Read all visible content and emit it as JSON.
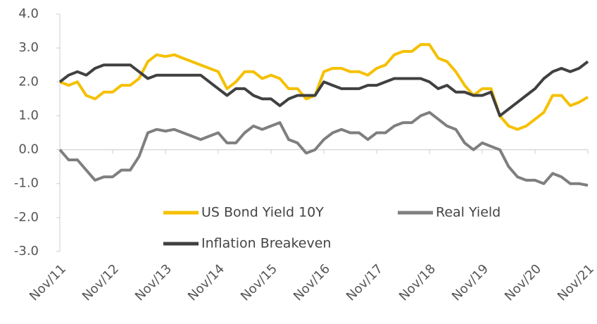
{
  "chart_data": {
    "type": "line",
    "x": [
      "2011-11",
      "2012-01",
      "2012-03",
      "2012-05",
      "2012-07",
      "2012-09",
      "2012-11",
      "2013-01",
      "2013-03",
      "2013-05",
      "2013-07",
      "2013-09",
      "2013-11",
      "2014-01",
      "2014-03",
      "2014-05",
      "2014-07",
      "2014-09",
      "2014-11",
      "2015-01",
      "2015-03",
      "2015-05",
      "2015-07",
      "2015-09",
      "2015-11",
      "2016-01",
      "2016-03",
      "2016-05",
      "2016-07",
      "2016-09",
      "2016-11",
      "2017-01",
      "2017-03",
      "2017-05",
      "2017-07",
      "2017-09",
      "2017-11",
      "2018-01",
      "2018-03",
      "2018-05",
      "2018-07",
      "2018-09",
      "2018-11",
      "2019-01",
      "2019-03",
      "2019-05",
      "2019-07",
      "2019-09",
      "2019-11",
      "2020-01",
      "2020-03",
      "2020-05",
      "2020-07",
      "2020-09",
      "2020-11",
      "2021-01",
      "2021-03",
      "2021-05",
      "2021-07",
      "2021-09",
      "2021-11"
    ],
    "series": [
      {
        "name": "US Bond Yield 10Y",
        "color": "#f5c000",
        "values": [
          2.0,
          1.9,
          2.0,
          1.6,
          1.5,
          1.7,
          1.7,
          1.9,
          1.9,
          2.1,
          2.6,
          2.8,
          2.75,
          2.8,
          2.7,
          2.6,
          2.5,
          2.4,
          2.3,
          1.8,
          2.0,
          2.3,
          2.3,
          2.1,
          2.2,
          2.1,
          1.8,
          1.8,
          1.5,
          1.6,
          2.3,
          2.4,
          2.4,
          2.3,
          2.3,
          2.2,
          2.4,
          2.5,
          2.8,
          2.9,
          2.9,
          3.1,
          3.1,
          2.7,
          2.6,
          2.3,
          1.9,
          1.6,
          1.8,
          1.8,
          1.0,
          0.7,
          0.6,
          0.7,
          0.9,
          1.1,
          1.6,
          1.6,
          1.3,
          1.4,
          1.55
        ]
      },
      {
        "name": "Real Yield",
        "color": "#7f7f7f",
        "values": [
          0.0,
          -0.3,
          -0.3,
          -0.6,
          -0.9,
          -0.8,
          -0.8,
          -0.6,
          -0.6,
          -0.2,
          0.5,
          0.6,
          0.55,
          0.6,
          0.5,
          0.4,
          0.3,
          0.4,
          0.5,
          0.2,
          0.2,
          0.5,
          0.7,
          0.6,
          0.7,
          0.8,
          0.3,
          0.2,
          -0.1,
          0.0,
          0.3,
          0.5,
          0.6,
          0.5,
          0.5,
          0.3,
          0.5,
          0.5,
          0.7,
          0.8,
          0.8,
          1.0,
          1.1,
          0.9,
          0.7,
          0.6,
          0.2,
          0.0,
          0.2,
          0.1,
          0.0,
          -0.5,
          -0.8,
          -0.9,
          -0.9,
          -1.0,
          -0.7,
          -0.8,
          -1.0,
          -1.0,
          -1.05
        ]
      },
      {
        "name": "Inflation Breakeven",
        "color": "#404040",
        "values": [
          2.0,
          2.2,
          2.3,
          2.2,
          2.4,
          2.5,
          2.5,
          2.5,
          2.5,
          2.3,
          2.1,
          2.2,
          2.2,
          2.2,
          2.2,
          2.2,
          2.2,
          2.0,
          1.8,
          1.6,
          1.8,
          1.8,
          1.6,
          1.5,
          1.5,
          1.3,
          1.5,
          1.6,
          1.6,
          1.6,
          2.0,
          1.9,
          1.8,
          1.8,
          1.8,
          1.9,
          1.9,
          2.0,
          2.1,
          2.1,
          2.1,
          2.1,
          2.0,
          1.8,
          1.9,
          1.7,
          1.7,
          1.6,
          1.6,
          1.7,
          1.0,
          1.2,
          1.4,
          1.6,
          1.8,
          2.1,
          2.3,
          2.4,
          2.3,
          2.4,
          2.6
        ]
      }
    ],
    "xlim": [
      "2011-11",
      "2021-11"
    ],
    "xticks": [
      {
        "value": "2011-11",
        "label": "Nov/11"
      },
      {
        "value": "2012-11",
        "label": "Nov/12"
      },
      {
        "value": "2013-11",
        "label": "Nov/13"
      },
      {
        "value": "2014-11",
        "label": "Nov/14"
      },
      {
        "value": "2015-11",
        "label": "Nov/15"
      },
      {
        "value": "2016-11",
        "label": "Nov/16"
      },
      {
        "value": "2017-11",
        "label": "Nov/17"
      },
      {
        "value": "2018-11",
        "label": "Nov/18"
      },
      {
        "value": "2019-11",
        "label": "Nov/19"
      },
      {
        "value": "2020-11",
        "label": "Nov/20"
      },
      {
        "value": "2021-11",
        "label": "Nov/21"
      }
    ],
    "ylim": [
      -3,
      4
    ],
    "yticks": [
      {
        "value": -3,
        "label": "-3.0"
      },
      {
        "value": -2,
        "label": "-2.0"
      },
      {
        "value": -1,
        "label": "-1.0"
      },
      {
        "value": 0,
        "label": "0.0"
      },
      {
        "value": 1,
        "label": "1.0"
      },
      {
        "value": 2,
        "label": "2.0"
      },
      {
        "value": 3,
        "label": "3.0"
      },
      {
        "value": 4,
        "label": "4.0"
      }
    ],
    "grid": false,
    "legend": "lower center"
  }
}
